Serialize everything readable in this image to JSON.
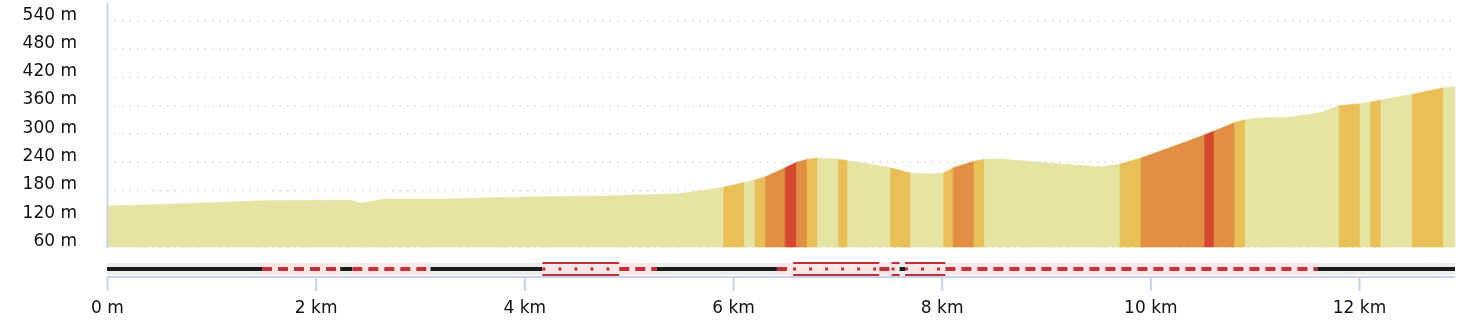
{
  "chart_data": {
    "type": "area",
    "grid": "y",
    "xlim": [
      0,
      12.92
    ],
    "xticks": [
      {
        "value": 0,
        "label": "0 m"
      },
      {
        "value": 2,
        "label": "2 km"
      },
      {
        "value": 4,
        "label": "4 km"
      },
      {
        "value": 6,
        "label": "6 km"
      },
      {
        "value": 8,
        "label": "8 km"
      },
      {
        "value": 10,
        "label": "10 km"
      },
      {
        "value": 12,
        "label": "12 km"
      }
    ],
    "ylim": [
      60,
      580
    ],
    "yticks": [
      {
        "value": 60,
        "label": "60 m"
      },
      {
        "value": 120,
        "label": "120 m"
      },
      {
        "value": 180,
        "label": "180 m"
      },
      {
        "value": 240,
        "label": "240 m"
      },
      {
        "value": 300,
        "label": "300 m"
      },
      {
        "value": 360,
        "label": "360 m"
      },
      {
        "value": 420,
        "label": "420 m"
      },
      {
        "value": 480,
        "label": "480 m"
      },
      {
        "value": 540,
        "label": "540 m"
      }
    ],
    "series": [
      {
        "color": "#e5e4a2",
        "x": [
          0,
          0.89,
          1.47,
          2.33,
          2.43,
          2.67,
          3.29,
          3.96,
          4.73,
          5.49,
          5.91
        ],
        "values": [
          147,
          153,
          158,
          160,
          153,
          162,
          162,
          166,
          168,
          173,
          187
        ]
      },
      {
        "color": "#e9bf57",
        "x": [
          5.91,
          6.11
        ],
        "values": [
          187,
          197
        ]
      },
      {
        "color": "#e5e4a2",
        "x": [
          6.11,
          6.21
        ],
        "values": [
          197,
          203
        ]
      },
      {
        "color": "#e9bf57",
        "x": [
          6.21,
          6.31
        ],
        "values": [
          203,
          209
        ]
      },
      {
        "color": "#e18f42",
        "x": [
          6.31,
          6.5
        ],
        "values": [
          209,
          228
        ]
      },
      {
        "color": "#d5472f",
        "x": [
          6.5,
          6.61
        ],
        "values": [
          228,
          240
        ]
      },
      {
        "color": "#e18f42",
        "x": [
          6.61,
          6.71
        ],
        "values": [
          240,
          246
        ]
      },
      {
        "color": "#e9bf57",
        "x": [
          6.71,
          6.81
        ],
        "values": [
          246,
          249
        ]
      },
      {
        "color": "#e5e4a2",
        "x": [
          6.81,
          7.01
        ],
        "values": [
          249,
          246
        ]
      },
      {
        "color": "#e9bf57",
        "x": [
          7.01,
          7.1
        ],
        "values": [
          246,
          243
        ]
      },
      {
        "color": "#e5e4a2",
        "x": [
          7.1,
          7.31,
          7.51
        ],
        "values": [
          243,
          236,
          228
        ]
      },
      {
        "color": "#e9bf57",
        "x": [
          7.51,
          7.7
        ],
        "values": [
          228,
          217
        ]
      },
      {
        "color": "#e5e4a2",
        "x": [
          7.7,
          7.89,
          8.02
        ],
        "values": [
          217,
          215,
          217
        ]
      },
      {
        "color": "#e9bf57",
        "x": [
          8.02,
          8.11
        ],
        "values": [
          217,
          228
        ]
      },
      {
        "color": "#e18f42",
        "x": [
          8.11,
          8.31
        ],
        "values": [
          228,
          242
        ]
      },
      {
        "color": "#e9bf57",
        "x": [
          8.31,
          8.41
        ],
        "values": [
          242,
          246
        ]
      },
      {
        "color": "#e5e4a2",
        "x": [
          8.41,
          8.56,
          9.04,
          9.52,
          9.71
        ],
        "values": [
          246,
          247,
          238,
          230,
          236
        ]
      },
      {
        "color": "#e9bf57",
        "x": [
          9.71,
          9.91
        ],
        "values": [
          236,
          249
        ]
      },
      {
        "color": "#e18f42",
        "x": [
          9.91,
          10.29,
          10.52
        ],
        "values": [
          249,
          279,
          298
        ]
      },
      {
        "color": "#d5472f",
        "x": [
          10.52,
          10.61
        ],
        "values": [
          298,
          306
        ]
      },
      {
        "color": "#e18f42",
        "x": [
          10.61,
          10.81
        ],
        "values": [
          306,
          324
        ]
      },
      {
        "color": "#e9bf57",
        "x": [
          10.81,
          10.91
        ],
        "values": [
          324,
          330
        ]
      },
      {
        "color": "#e5e4a2",
        "x": [
          10.91,
          11.05,
          11.34,
          11.63,
          11.81
        ],
        "values": [
          330,
          334,
          336,
          345,
          360
        ]
      },
      {
        "color": "#e9bf57",
        "x": [
          11.81,
          12.01
        ],
        "values": [
          360,
          364
        ]
      },
      {
        "color": "#e5e4a2",
        "x": [
          12.01,
          12.11
        ],
        "values": [
          364,
          368
        ]
      },
      {
        "color": "#e9bf57",
        "x": [
          12.11,
          12.21
        ],
        "values": [
          368,
          372
        ]
      },
      {
        "color": "#e5e4a2",
        "x": [
          12.21,
          12.51
        ],
        "values": [
          372,
          384
        ]
      },
      {
        "color": "#e9bf57",
        "x": [
          12.51,
          12.81
        ],
        "values": [
          384,
          398
        ]
      },
      {
        "color": "#e5e4a2",
        "x": [
          12.81,
          12.92
        ],
        "values": [
          398,
          400
        ]
      }
    ]
  }
}
